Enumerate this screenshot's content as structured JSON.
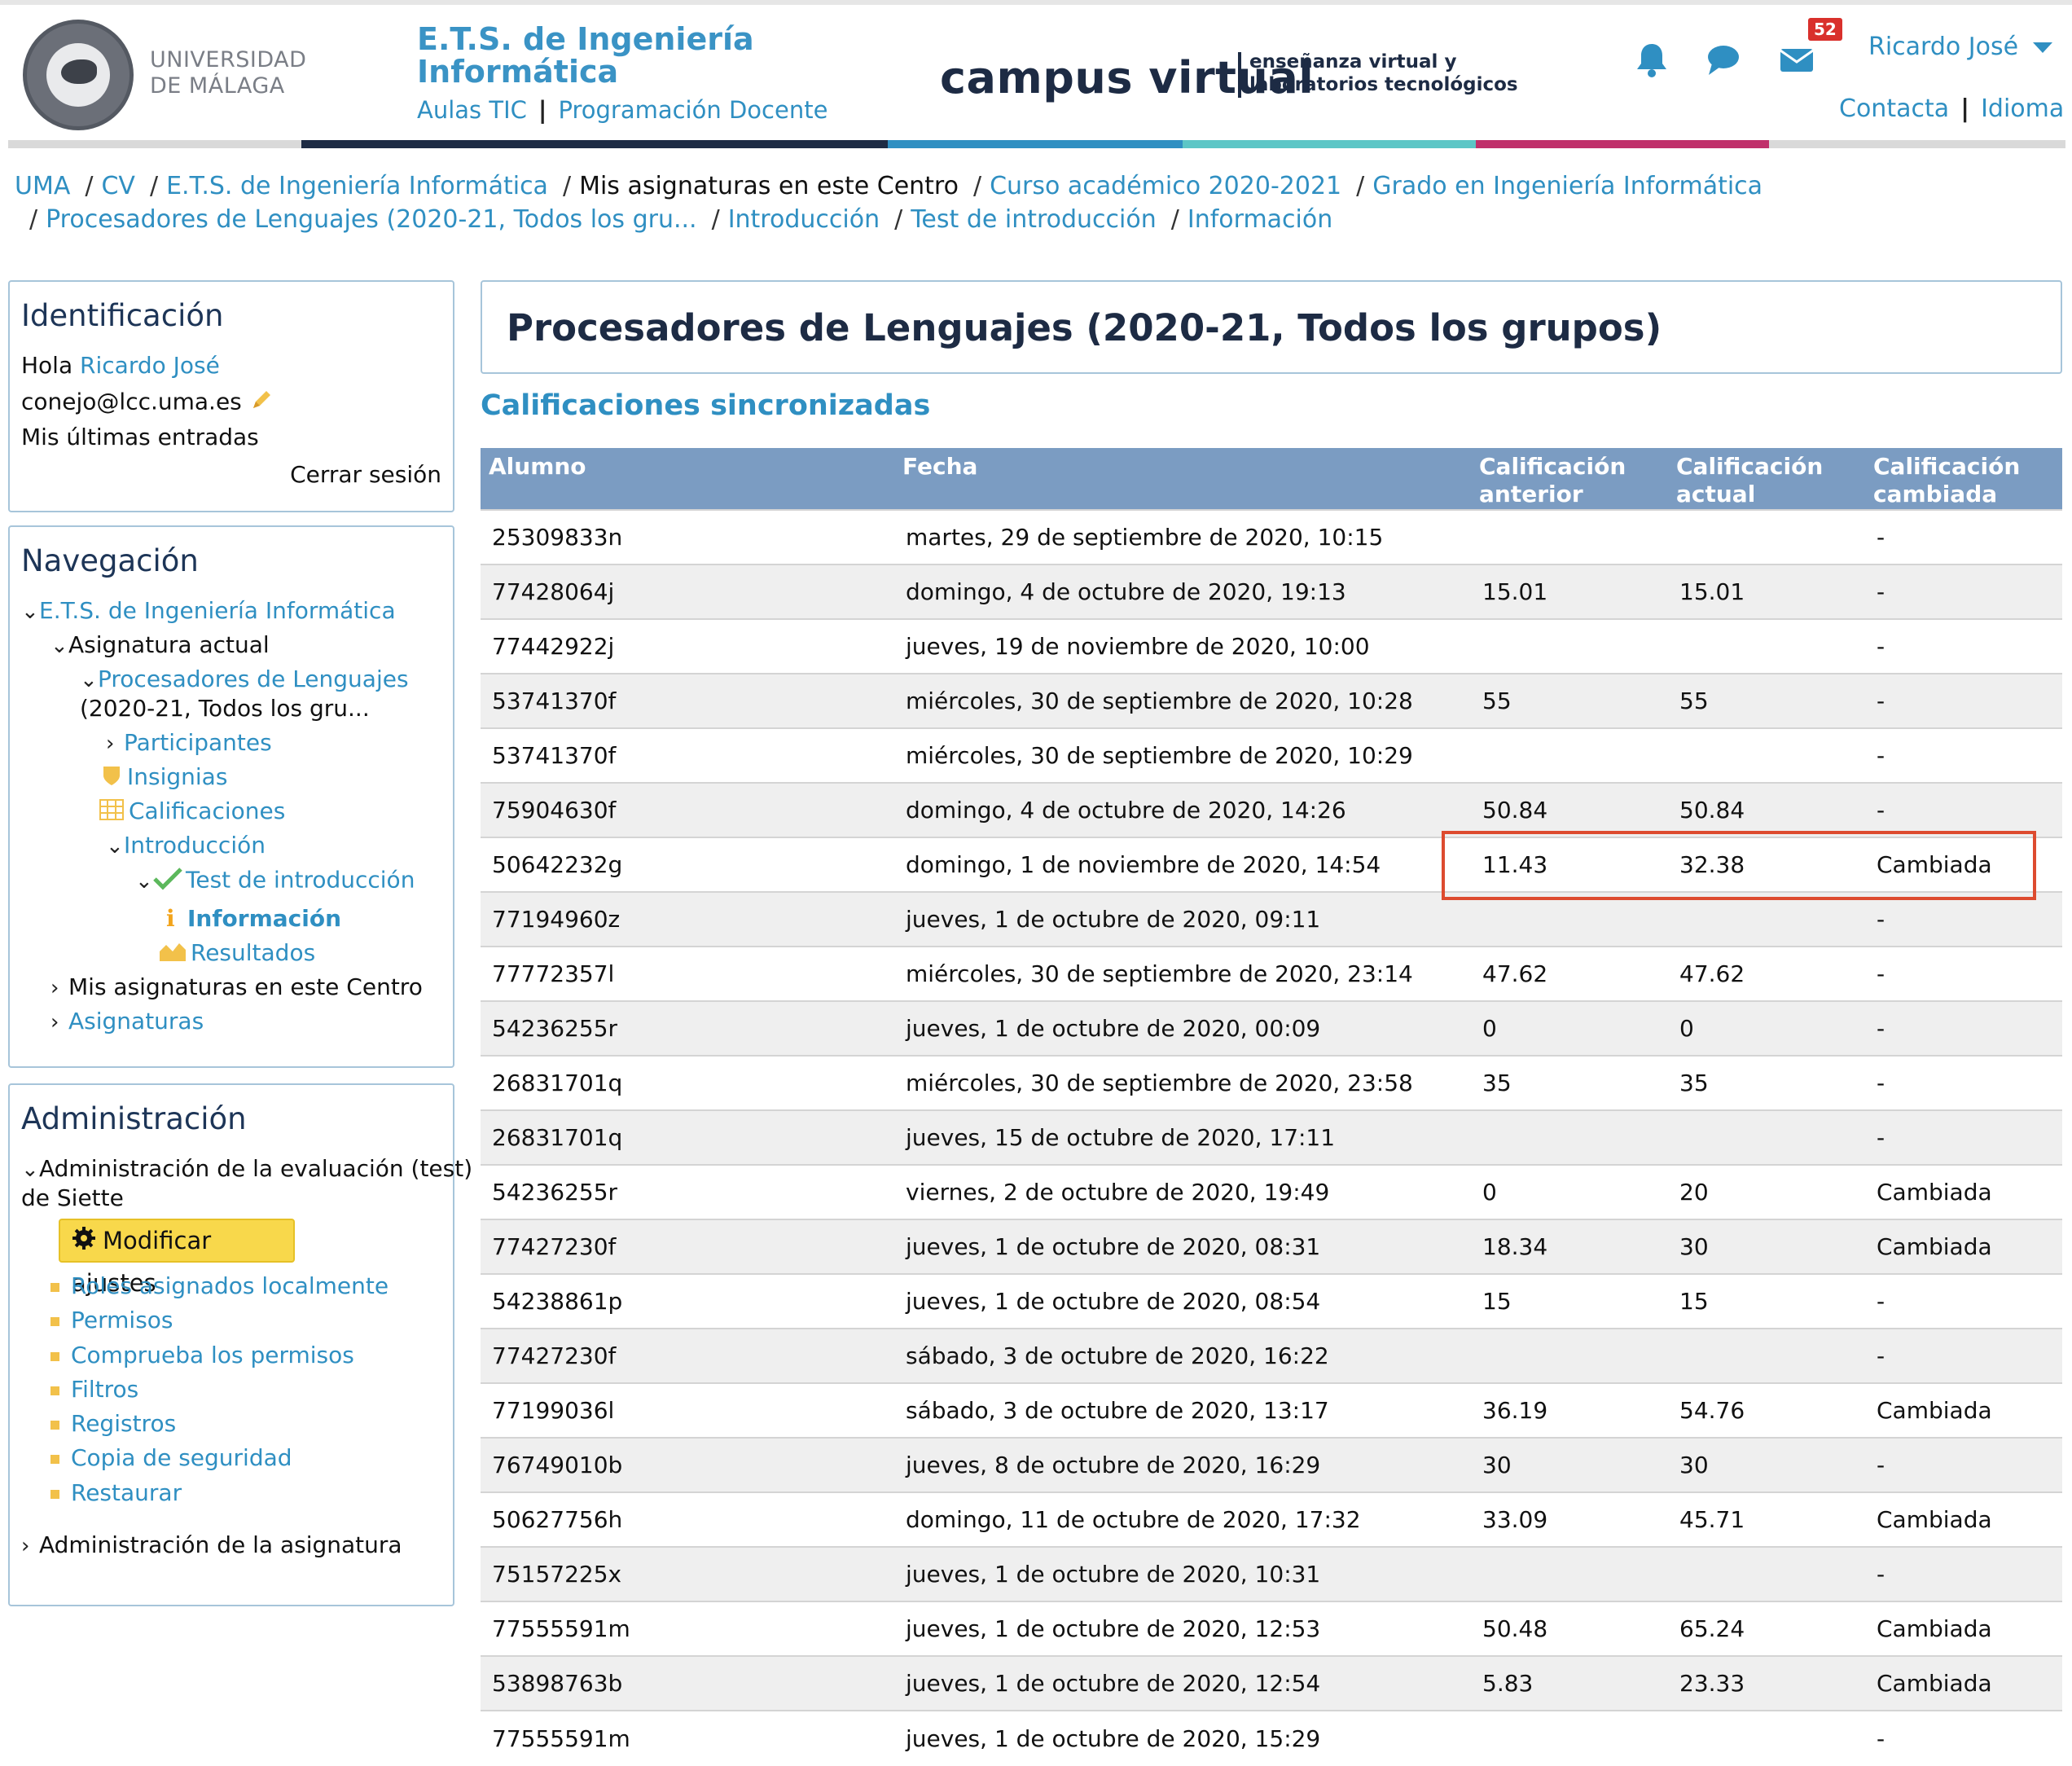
{
  "header": {
    "logo_text_line1": "UNIVERSIDAD",
    "logo_text_line2": "DE MÁLAGA",
    "school_title_line1": "E.T.S. de Ingeniería",
    "school_title_line2": "Informática",
    "aulas_tic": "Aulas TIC",
    "link_separator": "|",
    "programacion_docente": "Programación Docente",
    "campus_virtual": "campus virtual",
    "tagline_line1": "enseñanza virtual y",
    "tagline_line2": "laboratorios tecnológicos",
    "messages_badge": "52",
    "user_name": "Ricardo José",
    "contacta": "Contacta",
    "idioma": "Idioma",
    "colors": {
      "navy": "#1d2b44",
      "blue": "#2f8fc2",
      "teal": "#5cc6c6",
      "magenta": "#c0306b"
    }
  },
  "breadcrumb": {
    "separator": "/",
    "items": [
      "UMA",
      "CV",
      "E.T.S. de Ingeniería Informática",
      "Mis asignaturas en este Centro",
      "Curso académico 2020-2021",
      "Grado en Ingeniería Informática",
      "Procesadores de Lenguajes (2020-21, Todos los gru...",
      "Introducción",
      "Test de introducción",
      "Información"
    ]
  },
  "identificacion": {
    "title": "Identificación",
    "hola": "Hola",
    "user": "Ricardo José",
    "email": "conejo@lcc.uma.es",
    "ultimas": "Mis últimas entradas",
    "cerrar": "Cerrar sesión"
  },
  "navegacion": {
    "title": "Navegación",
    "ets": "E.T.S. de Ingeniería Informática",
    "asignatura_actual": "Asignatura actual",
    "curso_line1": "Procesadores de Lenguajes",
    "curso_line2": "(2020-21, Todos los gru...",
    "participantes": "Participantes",
    "insignias": "Insignias",
    "calificaciones": "Calificaciones",
    "introduccion": "Introducción",
    "test": "Test de introducción",
    "informacion": "Información",
    "resultados": "Resultados",
    "mis_asignaturas": "Mis asignaturas en este Centro",
    "asignaturas": "Asignaturas"
  },
  "administracion": {
    "title": "Administración",
    "eval_line1": "Administración de la evaluación (test)",
    "eval_line2": "de Siette",
    "modificar": "Modificar ajustes",
    "items": [
      "Roles asignados localmente",
      "Permisos",
      "Comprueba los permisos",
      "Filtros",
      "Registros",
      "Copia de seguridad",
      "Restaurar"
    ],
    "admin_asignatura": "Administración de la asignatura"
  },
  "main": {
    "course_title": "Procesadores de Lenguajes (2020-21, Todos los grupos)",
    "sync_title": "Calificaciones sincronizadas",
    "columns": {
      "alumno": "Alumno",
      "fecha": "Fecha",
      "anterior_1": "Calificación",
      "anterior_2": "anterior",
      "actual_1": "Calificación",
      "actual_2": "actual",
      "cambiada_1": "Calificación",
      "cambiada_2": "cambiada"
    },
    "rows": [
      {
        "alumno": "25309833n",
        "fecha": "martes, 29 de septiembre de 2020, 10:15",
        "anterior": "",
        "actual": "",
        "cambiada": "-"
      },
      {
        "alumno": "77428064j",
        "fecha": "domingo, 4 de octubre de 2020, 19:13",
        "anterior": "15.01",
        "actual": "15.01",
        "cambiada": "-"
      },
      {
        "alumno": "77442922j",
        "fecha": "jueves, 19 de noviembre de 2020, 10:00",
        "anterior": "",
        "actual": "",
        "cambiada": "-"
      },
      {
        "alumno": "53741370f",
        "fecha": "miércoles, 30 de septiembre de 2020, 10:28",
        "anterior": "55",
        "actual": "55",
        "cambiada": "-"
      },
      {
        "alumno": "53741370f",
        "fecha": "miércoles, 30 de septiembre de 2020, 10:29",
        "anterior": "",
        "actual": "",
        "cambiada": "-"
      },
      {
        "alumno": "75904630f",
        "fecha": "domingo, 4 de octubre de 2020, 14:26",
        "anterior": "50.84",
        "actual": "50.84",
        "cambiada": "-"
      },
      {
        "alumno": "50642232g",
        "fecha": "domingo, 1 de noviembre de 2020, 14:54",
        "anterior": "11.43",
        "actual": "32.38",
        "cambiada": "Cambiada"
      },
      {
        "alumno": "77194960z",
        "fecha": "jueves, 1 de octubre de 2020, 09:11",
        "anterior": "",
        "actual": "",
        "cambiada": "-"
      },
      {
        "alumno": "77772357l",
        "fecha": "miércoles, 30 de septiembre de 2020, 23:14",
        "anterior": "47.62",
        "actual": "47.62",
        "cambiada": "-"
      },
      {
        "alumno": "54236255r",
        "fecha": "jueves, 1 de octubre de 2020, 00:09",
        "anterior": "0",
        "actual": "0",
        "cambiada": "-"
      },
      {
        "alumno": "26831701q",
        "fecha": "miércoles, 30 de septiembre de 2020, 23:58",
        "anterior": "35",
        "actual": "35",
        "cambiada": "-"
      },
      {
        "alumno": "26831701q",
        "fecha": "jueves, 15 de octubre de 2020, 17:11",
        "anterior": "",
        "actual": "",
        "cambiada": "-"
      },
      {
        "alumno": "54236255r",
        "fecha": "viernes, 2 de octubre de 2020, 19:49",
        "anterior": "0",
        "actual": "20",
        "cambiada": "Cambiada"
      },
      {
        "alumno": "77427230f",
        "fecha": "jueves, 1 de octubre de 2020, 08:31",
        "anterior": "18.34",
        "actual": "30",
        "cambiada": "Cambiada"
      },
      {
        "alumno": "54238861p",
        "fecha": "jueves, 1 de octubre de 2020, 08:54",
        "anterior": "15",
        "actual": "15",
        "cambiada": "-"
      },
      {
        "alumno": "77427230f",
        "fecha": "sábado, 3 de octubre de 2020, 16:22",
        "anterior": "",
        "actual": "",
        "cambiada": "-"
      },
      {
        "alumno": "77199036l",
        "fecha": "sábado, 3 de octubre de 2020, 13:17",
        "anterior": "36.19",
        "actual": "54.76",
        "cambiada": "Cambiada"
      },
      {
        "alumno": "76749010b",
        "fecha": "jueves, 8 de octubre de 2020, 16:29",
        "anterior": "30",
        "actual": "30",
        "cambiada": "-"
      },
      {
        "alumno": "50627756h",
        "fecha": "domingo, 11 de octubre de 2020, 17:32",
        "anterior": "33.09",
        "actual": "45.71",
        "cambiada": "Cambiada"
      },
      {
        "alumno": "75157225x",
        "fecha": "jueves, 1 de octubre de 2020, 10:31",
        "anterior": "",
        "actual": "",
        "cambiada": "-"
      },
      {
        "alumno": "77555591m",
        "fecha": "jueves, 1 de octubre de 2020, 12:53",
        "anterior": "50.48",
        "actual": "65.24",
        "cambiada": "Cambiada"
      },
      {
        "alumno": "53898763b",
        "fecha": "jueves, 1 de octubre de 2020, 12:54",
        "anterior": "5.83",
        "actual": "23.33",
        "cambiada": "Cambiada"
      },
      {
        "alumno": "77555591m",
        "fecha": "jueves, 1 de octubre de 2020, 15:29",
        "anterior": "",
        "actual": "",
        "cambiada": "-"
      }
    ]
  }
}
